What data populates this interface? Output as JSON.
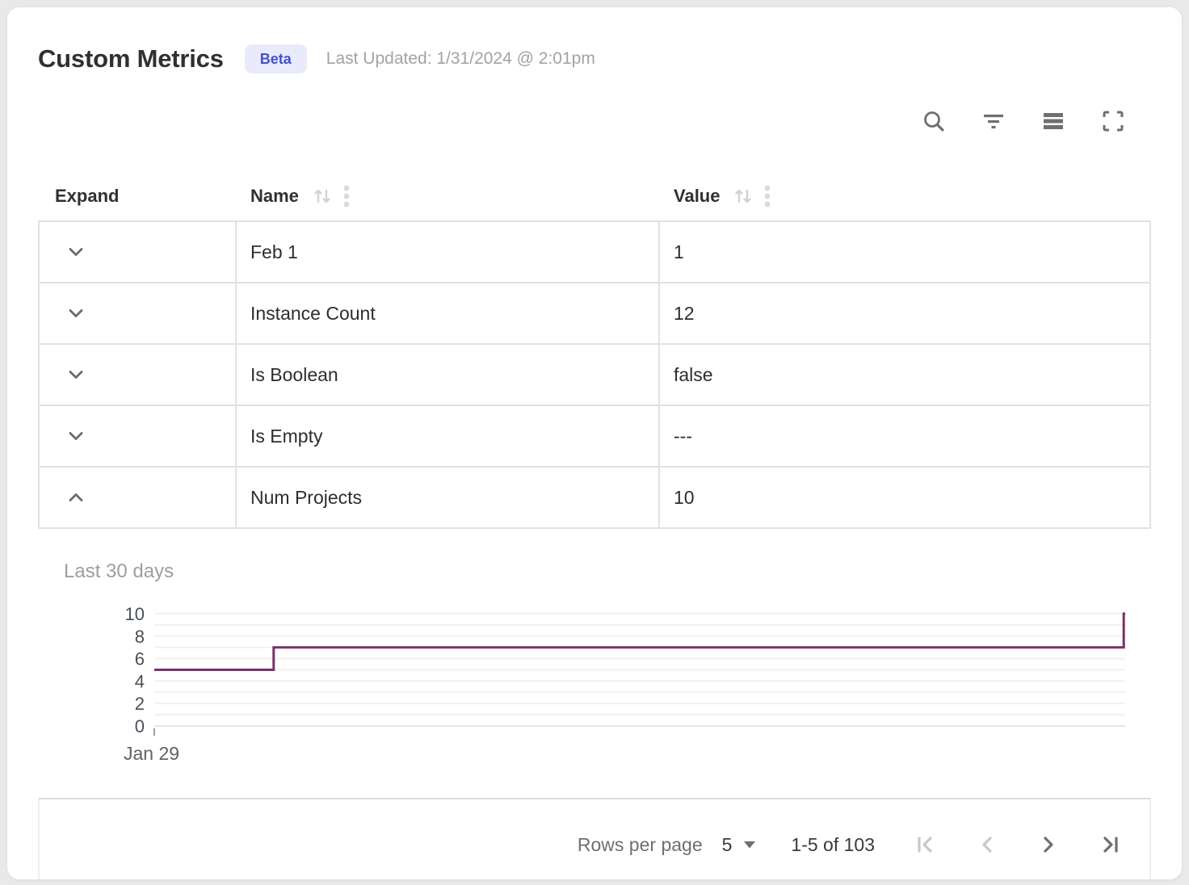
{
  "header": {
    "title": "Custom Metrics",
    "badge": "Beta",
    "last_updated": "Last Updated: 1/31/2024 @ 2:01pm"
  },
  "toolbar": {
    "icons": [
      "search-icon",
      "filter-icon",
      "density-icon",
      "fullscreen-icon"
    ]
  },
  "table": {
    "columns": [
      {
        "label": "Expand",
        "sortable": false
      },
      {
        "label": "Name",
        "sortable": true
      },
      {
        "label": "Value",
        "sortable": true
      }
    ],
    "rows": [
      {
        "name": "Feb 1",
        "value": "1",
        "expanded": false
      },
      {
        "name": "Instance Count",
        "value": "12",
        "expanded": false
      },
      {
        "name": "Is Boolean",
        "value": "false",
        "expanded": false
      },
      {
        "name": "Is Empty",
        "value": "---",
        "expanded": false
      },
      {
        "name": "Num Projects",
        "value": "10",
        "expanded": true
      }
    ]
  },
  "chart_data": {
    "type": "line",
    "subtype": "step",
    "title": "Last 30 days",
    "series_name": "Num Projects",
    "ylim": [
      0,
      10
    ],
    "yticks": [
      0,
      2,
      4,
      6,
      8,
      10
    ],
    "grid_step": 1,
    "x_tick_labels": [
      "Jan 29"
    ],
    "points": [
      {
        "x_frac": 0.0,
        "y": 5
      },
      {
        "x_frac": 0.123,
        "y": 5
      },
      {
        "x_frac": 0.123,
        "y": 7
      },
      {
        "x_frac": 0.9985,
        "y": 7
      },
      {
        "x_frac": 0.9985,
        "y": 10
      },
      {
        "x_frac": 1.0,
        "y": 10
      }
    ],
    "line_color": "#7a3168",
    "grid_color": "#f1f1f1",
    "baseline_color": "#e6e6e6",
    "axis_text_color": "#4a4f58",
    "x_label_color": "#5f6368",
    "legend": "off"
  },
  "footer": {
    "rows_per_page_label": "Rows per page",
    "rows_per_page_value": "5",
    "range_label": "1-5 of 103",
    "pagination": {
      "first_enabled": false,
      "prev_enabled": false,
      "next_enabled": true,
      "last_enabled": true
    }
  },
  "colors": {
    "beta_badge_bg": "#e9ebfa",
    "beta_badge_text": "#4350cb",
    "chart_line": "#7a3168",
    "page_background": "#e9e9e9"
  }
}
